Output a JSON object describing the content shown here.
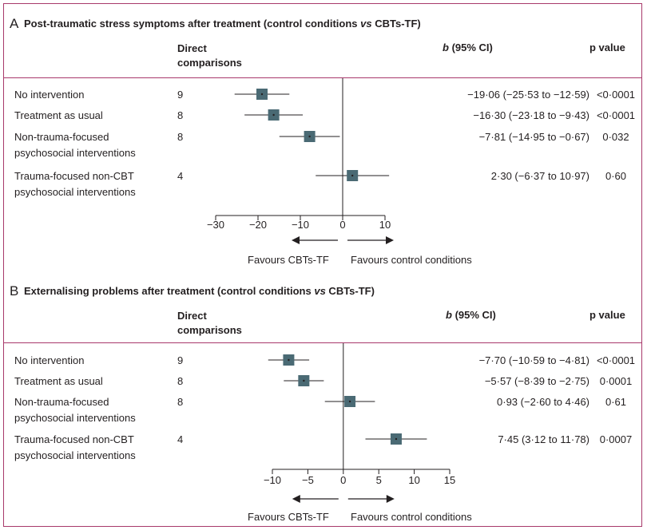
{
  "column_headers": {
    "comparisons_line1": "Direct",
    "comparisons_line2": "comparisons",
    "b_italic": "b",
    "b_rest": " (95% CI)",
    "p": "p value"
  },
  "arrow_labels": {
    "left": "Favours CBTs-TF",
    "right": "Favours control conditions"
  },
  "chart_data": [
    {
      "type": "forest",
      "panel": "A",
      "title": "Post-traumatic stress symptoms after treatment (control conditions ",
      "title_italic": "vs",
      "title_end": " CBTs-TF)",
      "xlim": [
        -30,
        10
      ],
      "xticks": [
        -30,
        -20,
        -10,
        0,
        10
      ],
      "xtick_labels": [
        "−30",
        "−20",
        "−10",
        "0",
        "10"
      ],
      "rows": [
        {
          "label": [
            "No intervention"
          ],
          "n": "9",
          "estimate": -19.06,
          "lower": -25.53,
          "upper": -12.59,
          "ci_text": "−19·06 (−25·53 to −12·59)",
          "p": "<0·0001"
        },
        {
          "label": [
            "Treatment as usual"
          ],
          "n": "8",
          "estimate": -16.3,
          "lower": -23.18,
          "upper": -9.43,
          "ci_text": "−16·30 (−23·18 to −9·43)",
          "p": "<0·0001"
        },
        {
          "label": [
            "Non-trauma-focused",
            "psychosocial interventions"
          ],
          "n": "8",
          "estimate": -7.81,
          "lower": -14.95,
          "upper": -0.67,
          "ci_text": "−7·81 (−14·95 to −0·67)",
          "p": "0·032"
        },
        {
          "label": [
            "Trauma-focused non-CBT",
            "psychosocial interventions"
          ],
          "n": "4",
          "estimate": 2.3,
          "lower": -6.37,
          "upper": 10.97,
          "ci_text": "2·30 (−6·37 to 10·97)",
          "p": "0·60"
        }
      ]
    },
    {
      "type": "forest",
      "panel": "B",
      "title": "Externalising problems after treatment (control conditions ",
      "title_italic": "vs",
      "title_end": " CBTs-TF)",
      "xlim": [
        -10,
        15
      ],
      "xticks": [
        -10,
        -5,
        0,
        5,
        10,
        15
      ],
      "xtick_labels": [
        "−10",
        "−5",
        "0",
        "5",
        "10",
        "15"
      ],
      "rows": [
        {
          "label": [
            "No intervention"
          ],
          "n": "9",
          "estimate": -7.7,
          "lower": -10.59,
          "upper": -4.81,
          "ci_text": "−7·70 (−10·59 to −4·81)",
          "p": "<0·0001"
        },
        {
          "label": [
            "Treatment as usual"
          ],
          "n": "8",
          "estimate": -5.57,
          "lower": -8.39,
          "upper": -2.75,
          "ci_text": "−5·57 (−8·39 to −2·75)",
          "p": "0·0001"
        },
        {
          "label": [
            "Non-trauma-focused",
            "psychosocial interventions"
          ],
          "n": "8",
          "estimate": 0.93,
          "lower": -2.6,
          "upper": 4.46,
          "ci_text": "0·93 (−2·60 to 4·46)",
          "p": "0·61"
        },
        {
          "label": [
            "Trauma-focused non-CBT",
            "psychosocial interventions"
          ],
          "n": "4",
          "estimate": 7.45,
          "lower": 3.12,
          "upper": 11.78,
          "ci_text": "7·45 (3·12 to 11·78)",
          "p": "0·0007"
        }
      ]
    }
  ],
  "colors": {
    "frame": "#a8396b",
    "marker": "#4a6a74",
    "line": "#231f20"
  }
}
